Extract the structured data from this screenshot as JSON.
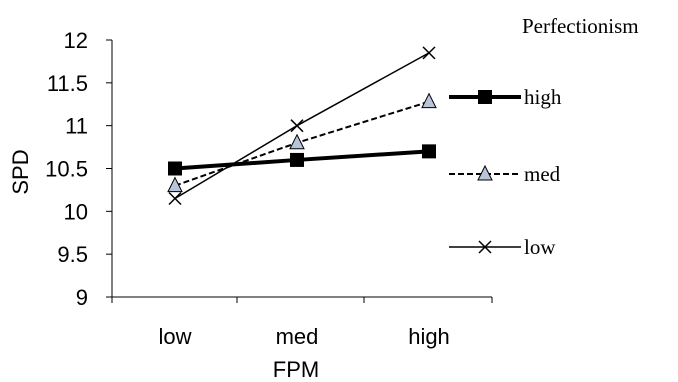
{
  "chart_data": {
    "type": "line",
    "title": "",
    "xlabel": "FPM",
    "ylabel": "SPD",
    "categories": [
      "low",
      "med",
      "high"
    ],
    "ylim": [
      9,
      12
    ],
    "yticks": [
      "9",
      "9.5",
      "10",
      "10.5",
      "11",
      "11.5",
      "12"
    ],
    "legend_title": "Perfectionism",
    "legend_position": "right",
    "grid": false,
    "series": [
      {
        "name": "high",
        "values": [
          10.5,
          10.6,
          10.7
        ],
        "style": "solid-thick",
        "marker": "square",
        "color": "#000000"
      },
      {
        "name": "med",
        "values": [
          10.3,
          10.8,
          11.28
        ],
        "style": "dashed",
        "marker": "triangle",
        "color": "#000000"
      },
      {
        "name": "low",
        "values": [
          10.15,
          11.0,
          11.85
        ],
        "style": "solid-thin",
        "marker": "x",
        "color": "#000000"
      }
    ]
  }
}
